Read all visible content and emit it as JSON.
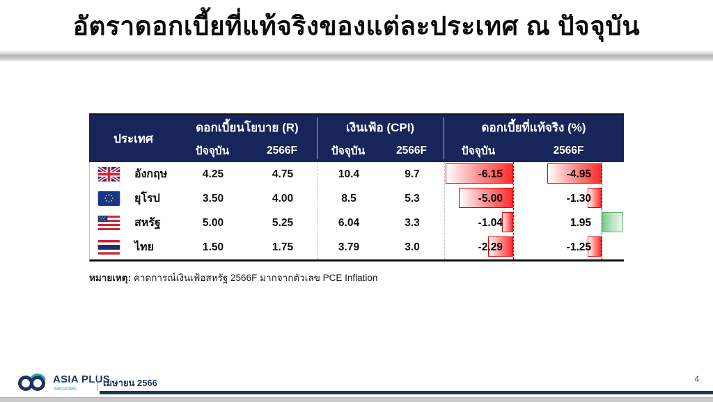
{
  "title": "อัตราดอกเบี้ยที่แท้จริงของแต่ละประเทศ ณ ปัจจุบัน",
  "table": {
    "country_header": "ประเทศ",
    "groups": [
      {
        "label": "ดอกเบี้ยนโยบาย (R)",
        "sub": [
          "ปัจจุบัน",
          "2566F"
        ]
      },
      {
        "label": "เงินเฟ้อ (CPI)",
        "sub": [
          "ปัจจุบัน",
          "2566F"
        ]
      },
      {
        "label": "ดอกเบี้ยที่แท้จริง (%)",
        "sub": [
          "ปัจจุบัน",
          "2566F"
        ]
      }
    ],
    "rows": [
      {
        "flag": "uk-flag",
        "country": "อังกฤษ",
        "policy_current": "4.25",
        "policy_2566f": "4.75",
        "cpi_current": "10.4",
        "cpi_2566f": "9.7",
        "real_current": "-6.15",
        "real_2566f": "-4.95"
      },
      {
        "flag": "eu-flag",
        "country": "ยุโรป",
        "policy_current": "3.50",
        "policy_2566f": "4.00",
        "cpi_current": "8.5",
        "cpi_2566f": "5.3",
        "real_current": "-5.00",
        "real_2566f": "-1.30"
      },
      {
        "flag": "us-flag",
        "country": "สหรัฐ",
        "policy_current": "5.00",
        "policy_2566f": "5.25",
        "cpi_current": "6.04",
        "cpi_2566f": "3.3",
        "real_current": "-1.04",
        "real_2566f": "1.95"
      },
      {
        "flag": "thailand-flag",
        "country": "ไทย",
        "policy_current": "1.50",
        "policy_2566f": "1.75",
        "cpi_current": "3.79",
        "cpi_2566f": "3.0",
        "real_current": "-2.29",
        "real_2566f": "-1.25"
      }
    ]
  },
  "chart_data": {
    "type": "table",
    "title": "อัตราดอกเบี้ยที่แท้จริงของแต่ละประเทศ ณ ปัจจุบัน",
    "columns": [
      "ประเทศ",
      "ดอกเบี้ยนโยบาย (R) ปัจจุบัน",
      "ดอกเบี้ยนโยบาย (R) 2566F",
      "เงินเฟ้อ (CPI) ปัจจุบัน",
      "เงินเฟ้อ (CPI) 2566F",
      "ดอกเบี้ยที่แท้จริง (%) ปัจจุบัน",
      "ดอกเบี้ยที่แท้จริง (%) 2566F"
    ],
    "rows": [
      [
        "อังกฤษ",
        4.25,
        4.75,
        10.4,
        9.7,
        -6.15,
        -4.95
      ],
      [
        "ยุโรป",
        3.5,
        4.0,
        8.5,
        5.3,
        -5.0,
        -1.3
      ],
      [
        "สหรัฐ",
        5.0,
        5.25,
        6.04,
        3.3,
        -1.04,
        1.95
      ],
      [
        "ไทย",
        1.5,
        1.75,
        3.79,
        3.0,
        -2.29,
        -1.25
      ]
    ],
    "databar_columns": [
      "ดอกเบี้ยที่แท้จริง (%) ปัจจุบัน",
      "ดอกเบี้ยที่แท้จริง (%) 2566F"
    ],
    "negative_bar_color": "#ff2a2a",
    "positive_bar_color": "#7cc68d"
  },
  "note": {
    "label": "หมายเหตุ:",
    "text": " คาดการณ์เงินเฟ้อสหรัฐ 2566F มากจากตัวเลข PCE Inflation"
  },
  "footer": {
    "brand": "ASIA PLUS",
    "brand_sub": "Securities",
    "date": "เมษายน 2566",
    "page": "4"
  },
  "colors": {
    "header_navy": "#17255a",
    "bar_red_border": "#e60000",
    "bar_green_border": "#62b274",
    "footer_navy": "#1c3461",
    "brand_teal": "#2aa9ad",
    "title_rule_gray": "#b9b9b9"
  }
}
